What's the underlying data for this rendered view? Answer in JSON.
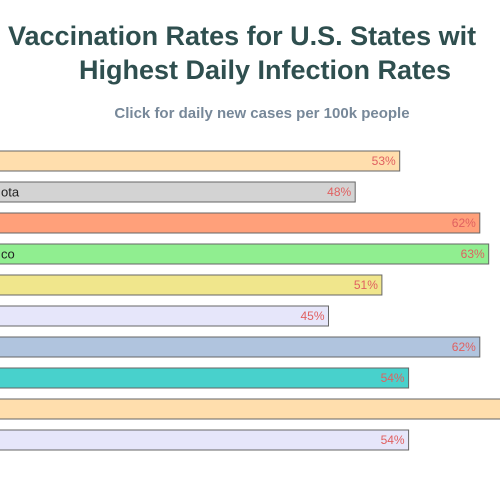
{
  "chart_data": {
    "type": "bar",
    "orientation": "horizontal",
    "title": [
      "Vaccination Rates for U.S. States wit",
      "Highest Daily Infection Rates"
    ],
    "subtitle": "Click for daily new cases per 100k people",
    "categories": [
      null,
      "ota",
      null,
      "co",
      null,
      null,
      null,
      null,
      null,
      null
    ],
    "values": [
      53,
      48,
      62,
      63,
      51,
      45,
      62,
      54,
      66,
      54
    ],
    "value_labels": [
      "53%",
      "48%",
      "62%",
      "63%",
      "51%",
      "45%",
      "62%",
      "54%",
      null,
      "54%"
    ],
    "colors": [
      "#ffdead",
      "#d3d3d3",
      "#ffa07a",
      "#90ee90",
      "#f0e68c",
      "#e6e6fa",
      "#b0c4de",
      "#48d1cc",
      "#ffdead",
      "#e6e6fa"
    ]
  }
}
